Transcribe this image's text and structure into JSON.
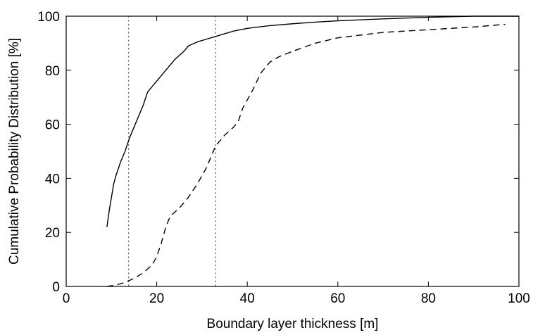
{
  "chart_data": {
    "type": "line",
    "title": "",
    "xlabel": "Boundary layer thickness [m]",
    "ylabel": "Cumulative Probability Distribution [%]",
    "xlim": [
      0,
      100
    ],
    "ylim": [
      0,
      100
    ],
    "xticks": [
      "0",
      "20",
      "40",
      "60",
      "80",
      "100"
    ],
    "yticks": [
      "0",
      "20",
      "40",
      "60",
      "80",
      "100"
    ],
    "grid": false,
    "legend": "none",
    "vlines": [
      {
        "x": 13.8,
        "style": "dotted"
      },
      {
        "x": 33,
        "style": "dotted"
      }
    ],
    "series": [
      {
        "style": "solid",
        "color": "#000000",
        "points": [
          [
            9,
            22
          ],
          [
            9.5,
            28
          ],
          [
            10,
            33
          ],
          [
            10.5,
            38
          ],
          [
            11,
            41
          ],
          [
            12,
            46
          ],
          [
            13,
            50
          ],
          [
            14,
            55
          ],
          [
            15,
            59
          ],
          [
            16,
            63
          ],
          [
            17,
            67
          ],
          [
            18,
            72
          ],
          [
            20,
            76
          ],
          [
            22,
            80
          ],
          [
            24,
            84
          ],
          [
            26,
            87
          ],
          [
            27,
            89
          ],
          [
            29,
            90.5
          ],
          [
            31,
            91.5
          ],
          [
            33,
            92.5
          ],
          [
            35,
            93.5
          ],
          [
            37,
            94.5
          ],
          [
            40,
            95.5
          ],
          [
            45,
            96.5
          ],
          [
            50,
            97.2
          ],
          [
            55,
            97.8
          ],
          [
            60,
            98.3
          ],
          [
            70,
            99
          ],
          [
            80,
            99.6
          ],
          [
            90,
            100
          ],
          [
            100,
            100
          ]
        ]
      },
      {
        "style": "dashed",
        "color": "#000000",
        "points": [
          [
            9,
            0
          ],
          [
            11,
            0.5
          ],
          [
            13,
            1.5
          ],
          [
            15,
            3
          ],
          [
            17,
            5
          ],
          [
            19,
            8
          ],
          [
            20,
            11
          ],
          [
            21,
            16
          ],
          [
            22,
            22
          ],
          [
            23,
            26
          ],
          [
            25,
            29
          ],
          [
            27,
            33
          ],
          [
            29,
            38
          ],
          [
            31,
            44
          ],
          [
            33,
            52
          ],
          [
            35,
            56
          ],
          [
            37,
            59
          ],
          [
            38,
            61
          ],
          [
            39,
            66
          ],
          [
            41,
            72
          ],
          [
            43,
            79
          ],
          [
            45,
            83
          ],
          [
            47,
            85
          ],
          [
            50,
            87
          ],
          [
            55,
            90
          ],
          [
            60,
            92
          ],
          [
            65,
            93
          ],
          [
            70,
            94
          ],
          [
            80,
            95
          ],
          [
            90,
            96
          ],
          [
            97,
            97
          ]
        ]
      }
    ]
  }
}
